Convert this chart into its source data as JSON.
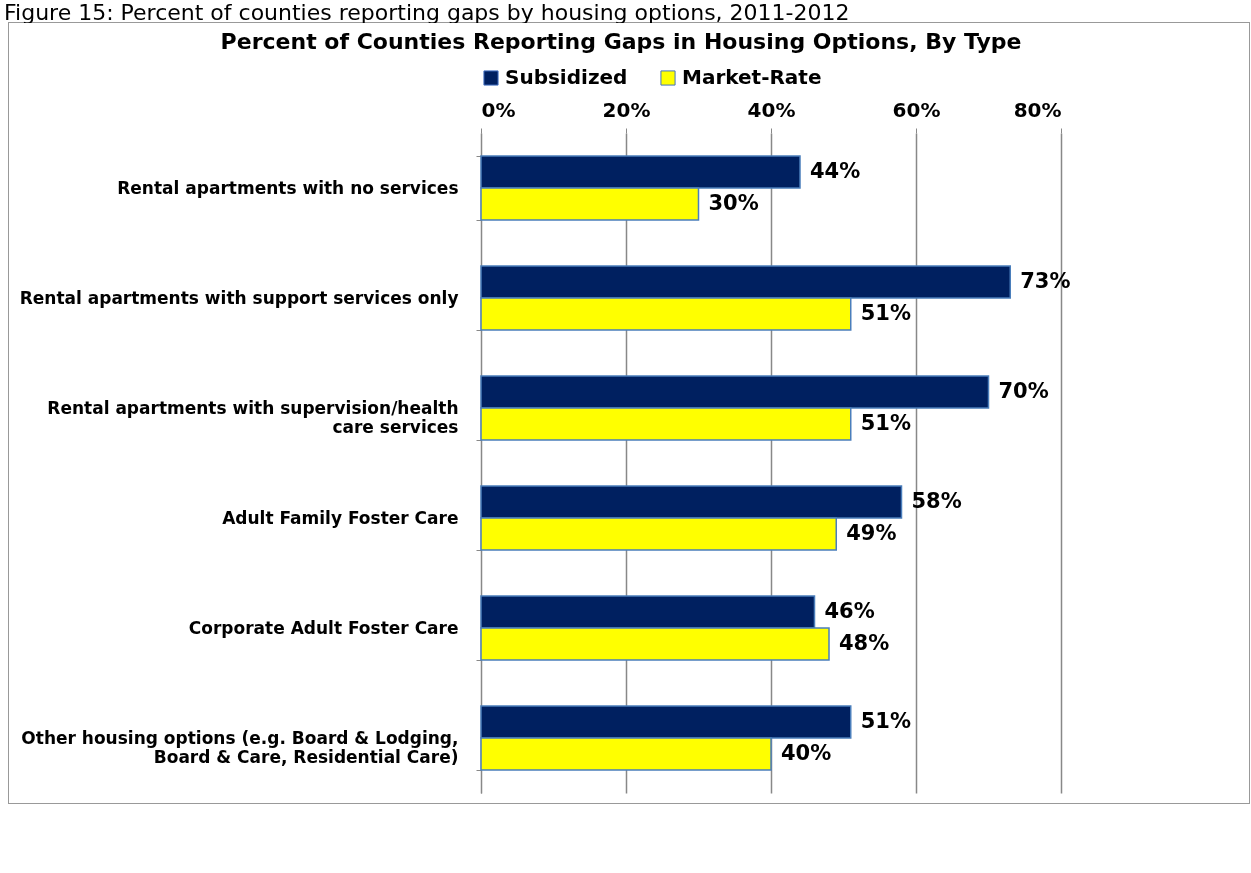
{
  "chart_data": {
    "type": "bar",
    "orientation": "horizontal",
    "title": "Percent of Counties Reporting Gaps in Housing Options, By Type",
    "annotations": [
      "Figure 15: Percent of counties reporting gaps by housing options, 2011-2012"
    ],
    "categories": [
      "Rental apartments with no services",
      "Rental apartments with support services only",
      "Rental apartments with supervision/health care services",
      "Adult Family Foster Care",
      "Corporate Adult Foster Care",
      "Other housing options (e.g. Board & Lodging, Board & Care, Residential Care)"
    ],
    "series": [
      {
        "name": "Subsidized",
        "color": "#002060",
        "values": [
          44,
          73,
          70,
          58,
          46,
          51
        ],
        "value_labels": [
          "44%",
          "73%",
          "70%",
          "58%",
          "46%",
          "51%"
        ]
      },
      {
        "name": "Market-Rate",
        "color": "#ffff00",
        "values": [
          30,
          51,
          51,
          49,
          48,
          40
        ],
        "value_labels": [
          "30%",
          "51%",
          "51%",
          "49%",
          "48%",
          "40%"
        ]
      }
    ],
    "xlim": [
      0,
      80
    ],
    "xticks": [
      {
        "value": 0,
        "label": "0%"
      },
      {
        "value": 20,
        "label": "20%"
      },
      {
        "value": 40,
        "label": "40%"
      },
      {
        "value": 60,
        "label": "60%"
      },
      {
        "value": 80,
        "label": "80%"
      }
    ],
    "grid": "x",
    "legend": "top"
  }
}
